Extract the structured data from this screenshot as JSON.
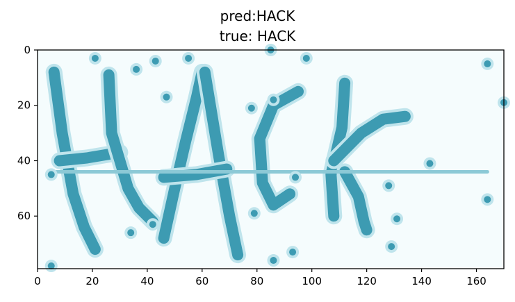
{
  "figure": {
    "title_line1": "pred:HACK",
    "title_line2": "true: HACK",
    "captcha_text": "HACK"
  },
  "axes": {
    "x_range": [
      0,
      170
    ],
    "y_range": [
      0,
      79
    ],
    "x_ticks": [
      0,
      20,
      40,
      60,
      80,
      100,
      120,
      140,
      160
    ],
    "y_ticks": [
      0,
      20,
      40,
      60
    ]
  },
  "colors": {
    "background": "#f5fcfd",
    "ink": "#3d9bb2",
    "halo": "#bfe4ec",
    "dot": "#3d9bb2",
    "strike": "#8cc9d6"
  },
  "noise_dots": [
    [
      21,
      3
    ],
    [
      36,
      7
    ],
    [
      43,
      4
    ],
    [
      47,
      17
    ],
    [
      55,
      3
    ],
    [
      85,
      0
    ],
    [
      98,
      3
    ],
    [
      78,
      21
    ],
    [
      86,
      18
    ],
    [
      5,
      45
    ],
    [
      94,
      46
    ],
    [
      143,
      41
    ],
    [
      128,
      49
    ],
    [
      164,
      5
    ],
    [
      170,
      19
    ],
    [
      164,
      54
    ],
    [
      131,
      61
    ],
    [
      129,
      71
    ],
    [
      79,
      59
    ],
    [
      34,
      66
    ],
    [
      42,
      63
    ],
    [
      93,
      73
    ],
    [
      86,
      76
    ],
    [
      5,
      78
    ]
  ]
}
